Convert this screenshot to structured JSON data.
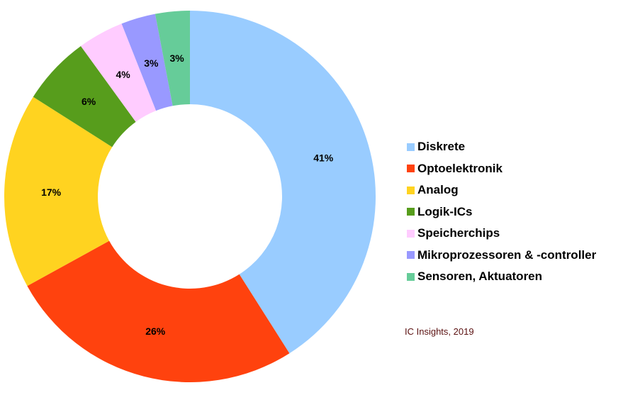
{
  "chart_data": {
    "type": "pie",
    "donut": true,
    "categories": [
      "Diskrete",
      "Optoelektronik",
      "Analog",
      "Logik-ICs",
      "Speicherchips",
      "Mikroprozessoren & -controller",
      "Sensoren, Aktuatoren"
    ],
    "values": [
      41,
      26,
      17,
      6,
      4,
      3,
      3
    ],
    "data_labels": [
      "41%",
      "26%",
      "17%",
      "6%",
      "4%",
      "3%",
      "3%"
    ],
    "colors": [
      "#99ccff",
      "#ff420e",
      "#ffd320",
      "#579d1c",
      "#ffccff",
      "#9999ff",
      "#66cc99"
    ],
    "legend_position": "right",
    "start_angle": "top, clockwise"
  },
  "source_note": "IC Insights, 2019"
}
